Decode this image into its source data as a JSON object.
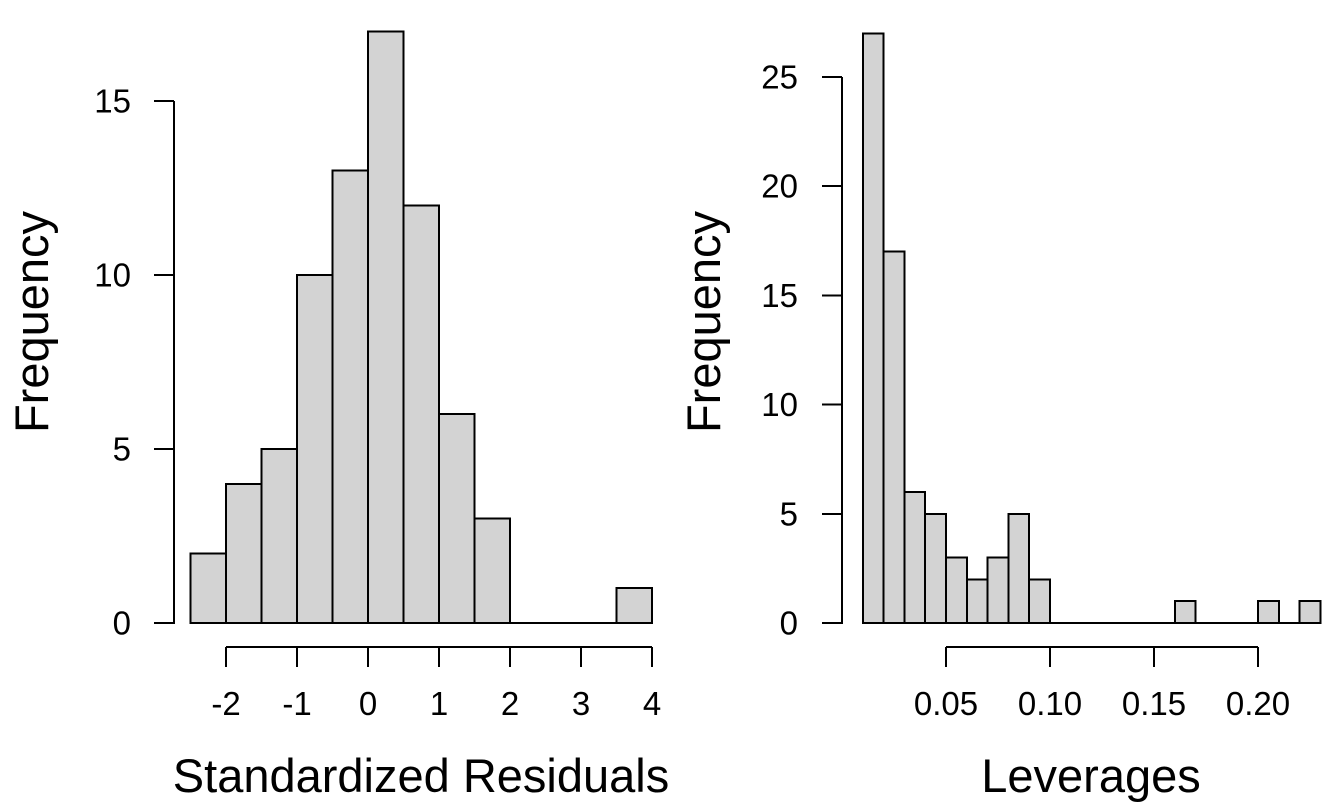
{
  "figure": {
    "background": "#ffffff",
    "axis_color": "#000000",
    "text_color": "#000000"
  },
  "chart_data": [
    {
      "type": "bar",
      "subtype": "histogram",
      "xlabel": "Standardized Residuals",
      "ylabel": "Frequency",
      "bin_start": -2.5,
      "bin_width": 0.5,
      "counts": [
        2,
        4,
        5,
        10,
        13,
        17,
        12,
        6,
        3,
        0,
        0,
        0,
        1
      ],
      "x_ticks": {
        "values": [
          -2,
          -1,
          0,
          1,
          2,
          3,
          4
        ],
        "labels": [
          "-2",
          "-1",
          "0",
          "1",
          "2",
          "3",
          "4"
        ]
      },
      "y_ticks": {
        "values": [
          0,
          5,
          10,
          15
        ],
        "labels": [
          "0",
          "5",
          "10",
          "15"
        ]
      },
      "xlim": [
        -2.5,
        4
      ],
      "ylim": [
        0,
        17
      ],
      "grid": "off",
      "legend": "none",
      "bar_fill": "#d3d3d3",
      "bar_stroke": "#000000"
    },
    {
      "type": "bar",
      "subtype": "histogram",
      "xlabel": "Leverages",
      "ylabel": "Frequency",
      "bin_start": 0.01,
      "bin_width": 0.01,
      "counts": [
        27,
        17,
        6,
        5,
        3,
        2,
        3,
        5,
        2,
        0,
        0,
        0,
        0,
        0,
        0,
        1,
        0,
        0,
        0,
        1,
        0,
        1
      ],
      "x_ticks": {
        "values": [
          0.05,
          0.1,
          0.15,
          0.2
        ],
        "labels": [
          "0.05",
          "0.10",
          "0.15",
          "0.20"
        ]
      },
      "y_ticks": {
        "values": [
          0,
          5,
          10,
          15,
          20,
          25
        ],
        "labels": [
          "0",
          "5",
          "10",
          "15",
          "20",
          "25"
        ]
      },
      "xlim": [
        0.01,
        0.23
      ],
      "ylim": [
        0,
        27
      ],
      "grid": "off",
      "legend": "none",
      "bar_fill": "#d3d3d3",
      "bar_stroke": "#000000"
    }
  ]
}
